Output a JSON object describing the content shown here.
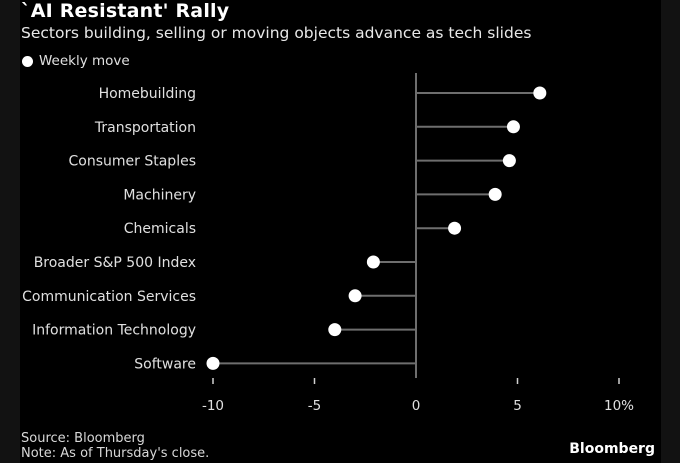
{
  "chart_data": {
    "type": "lollipop",
    "title": "`AI Resistant' Rally",
    "subtitle": "Sectors building, selling or moving objects advance as tech slides",
    "legend": {
      "label": "Weekly move",
      "placement": "top-left"
    },
    "categories": [
      "Homebuilding",
      "Transportation",
      "Consumer Staples",
      "Machinery",
      "Chemicals",
      "Broader S&P 500 Index",
      "Communication Services",
      "Information Technology",
      "Software"
    ],
    "series": [
      {
        "name": "Weekly move",
        "values": [
          6.1,
          4.8,
          4.6,
          3.9,
          1.9,
          -2.1,
          -3.0,
          -4.0,
          -10.0
        ]
      }
    ],
    "xlim": [
      -10,
      10
    ],
    "xticks": [
      -10,
      -5,
      0,
      5,
      10
    ],
    "xtick_labels": [
      "-10",
      "-5",
      "0",
      "5",
      "10%"
    ],
    "xlabel": "",
    "ylabel": "",
    "grid": false
  },
  "footer": {
    "source": "Source: Bloomberg",
    "note": "Note: As of Thursday's close.",
    "brand": "Bloomberg"
  },
  "colors": {
    "background": "#000000",
    "marker": "#ffffff",
    "stem": "#6e6e6e"
  }
}
